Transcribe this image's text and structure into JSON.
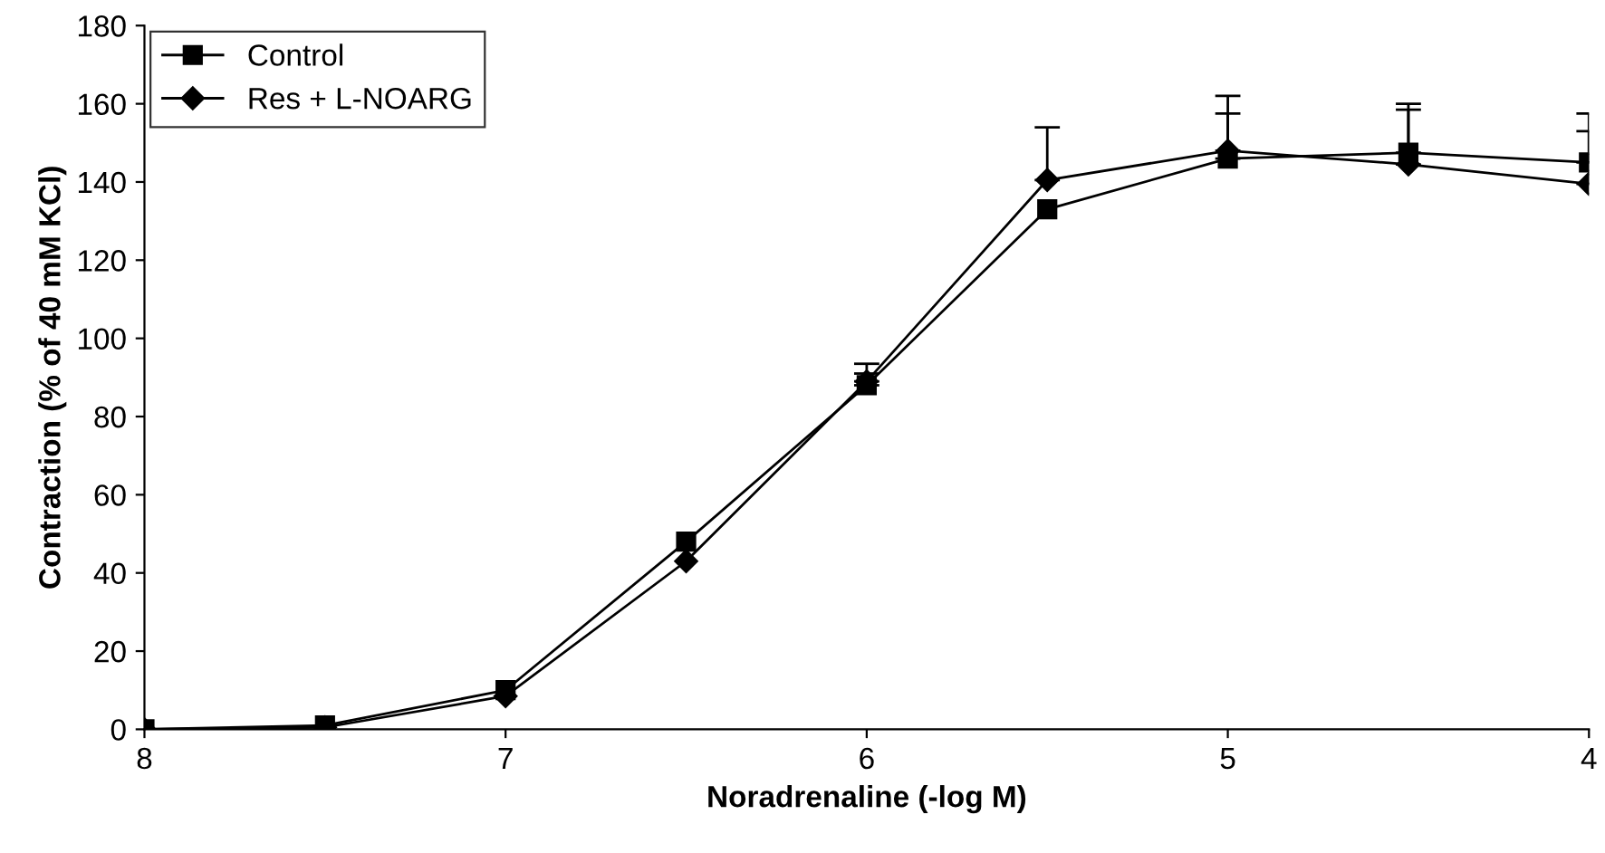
{
  "chart_data": {
    "type": "line",
    "xlabel": "Noradrenaline (-log M)",
    "ylabel": "Contraction (% of 40 mM KCl)",
    "x": [
      8,
      7.5,
      7,
      6.5,
      6,
      5.5,
      5,
      4.5,
      4
    ],
    "series": [
      {
        "name": "Control",
        "color": "#000000",
        "marker": "square",
        "values": [
          0,
          1,
          10,
          48,
          88,
          133,
          146,
          147.5,
          145
        ],
        "errors": [
          null,
          null,
          null,
          null,
          [
            88,
            91
          ],
          null,
          [
            146,
            157.5
          ],
          [
            147.5,
            160
          ],
          [
            145,
            157.5
          ]
        ]
      },
      {
        "name": "Res + L-NOARG",
        "color": "#000000",
        "marker": "diamond",
        "values": [
          0,
          0.5,
          8.5,
          43,
          89,
          140.5,
          148,
          144.5,
          139.5
        ],
        "errors": [
          null,
          null,
          null,
          null,
          [
            89,
            93.5
          ],
          [
            140.5,
            154
          ],
          [
            148,
            162
          ],
          [
            144.5,
            158.5
          ],
          [
            139.5,
            153
          ]
        ]
      }
    ],
    "xlim": [
      8,
      4
    ],
    "xticks": [
      8,
      7,
      6,
      5,
      4
    ],
    "ylim": [
      0,
      180
    ],
    "yticks": [
      0,
      20,
      40,
      60,
      80,
      100,
      120,
      140,
      160,
      180
    ],
    "grid": false,
    "legend": "top left",
    "line_style": "solid"
  }
}
